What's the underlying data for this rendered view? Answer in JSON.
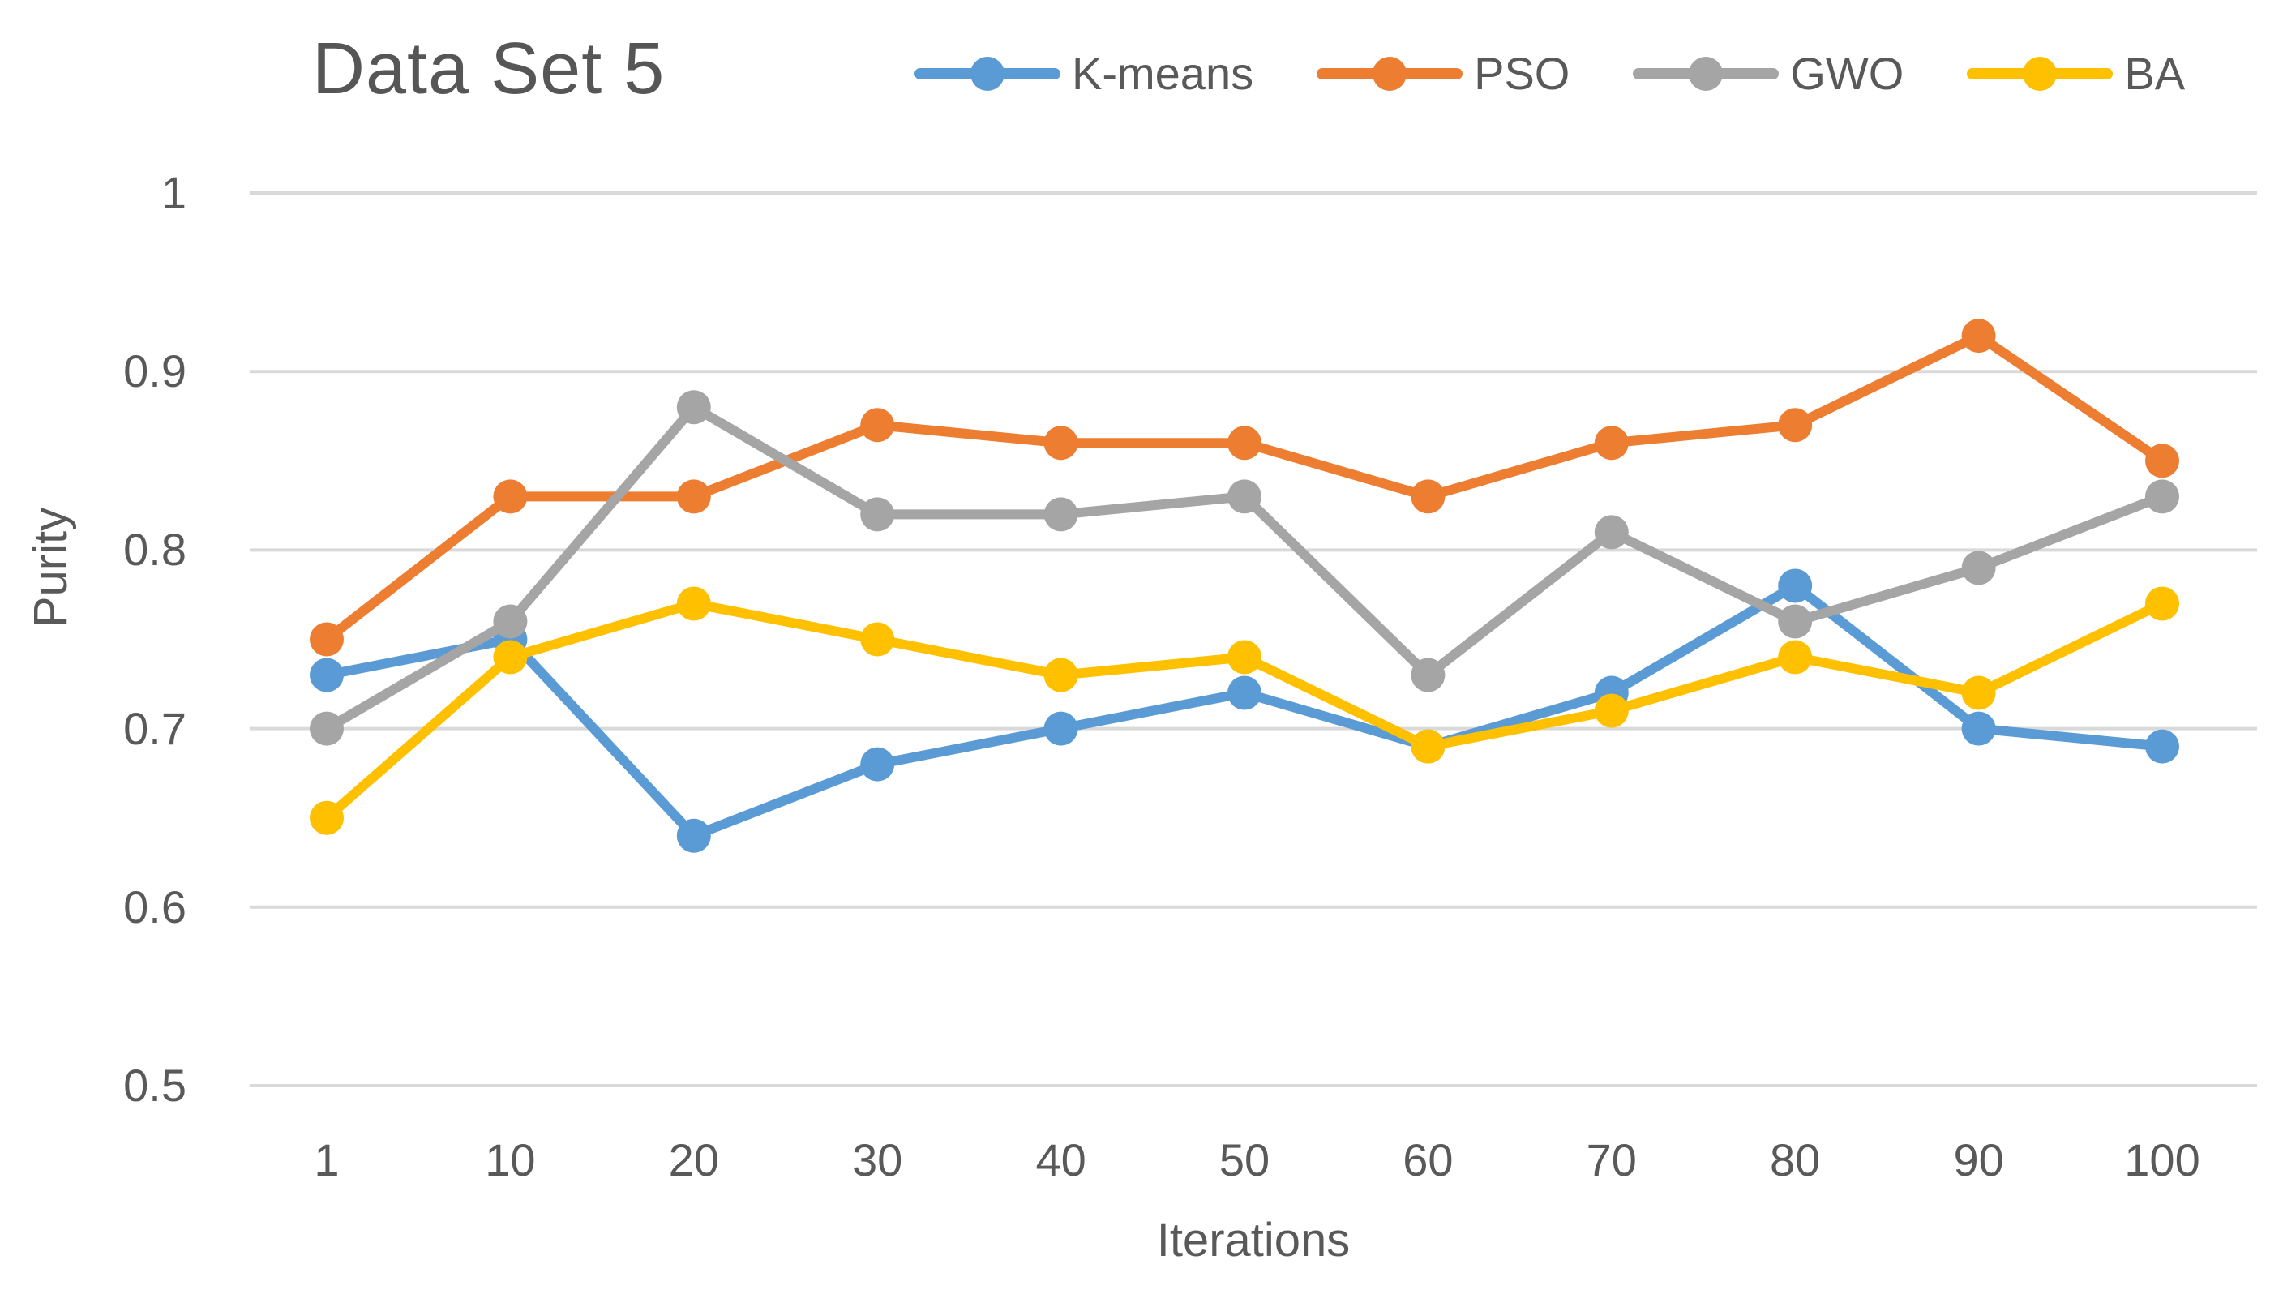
{
  "title": "Data Set 5",
  "chart_data": {
    "type": "line",
    "title": "Data Set 5",
    "x": [
      1,
      10,
      20,
      30,
      40,
      50,
      60,
      70,
      80,
      90,
      100
    ],
    "xlabel": "Iterations",
    "ylabel": "Purity",
    "ylim": [
      0.5,
      1.0
    ],
    "yticks": [
      "1",
      "0.9",
      "0.8",
      "0.7",
      "0.6",
      "0.5"
    ],
    "grid": "horizontal-only",
    "gridline_color": "#D9D9D9",
    "text_color": "#595959",
    "legend_position": "top",
    "marker": "circle",
    "series": [
      {
        "name": "K-means",
        "color": "#5B9BD5",
        "values": [
          0.73,
          0.75,
          0.64,
          0.68,
          0.7,
          0.72,
          0.69,
          0.72,
          0.78,
          0.7,
          0.69
        ]
      },
      {
        "name": "PSO",
        "color": "#ED7D31",
        "values": [
          0.75,
          0.83,
          0.83,
          0.87,
          0.86,
          0.86,
          0.83,
          0.86,
          0.87,
          0.92,
          0.85
        ]
      },
      {
        "name": "GWO",
        "color": "#A5A5A5",
        "values": [
          0.7,
          0.76,
          0.88,
          0.82,
          0.82,
          0.83,
          0.73,
          0.81,
          0.76,
          0.79,
          0.83
        ]
      },
      {
        "name": "BA",
        "color": "#FFC000",
        "values": [
          0.65,
          0.74,
          0.77,
          0.75,
          0.73,
          0.74,
          0.69,
          0.71,
          0.74,
          0.72,
          0.77
        ]
      }
    ]
  }
}
